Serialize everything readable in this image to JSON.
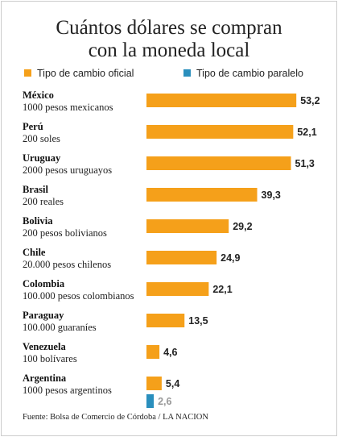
{
  "chart_data": {
    "type": "bar",
    "orientation": "horizontal",
    "title": [
      "Cuántos dólares se compran",
      "con la moneda local"
    ],
    "categories": [
      "México",
      "Perú",
      "Uruguay",
      "Brasil",
      "Bolivia",
      "Chile",
      "Colombia",
      "Paraguay",
      "Venezuela",
      "Argentina"
    ],
    "subtitles": [
      "1000 pesos mexicanos",
      "200 soles",
      "2000 pesos uruguayos",
      "200 reales",
      "200 pesos bolivianos",
      "20.000 pesos chilenos",
      "100.000 pesos colombianos",
      "100.000 guaraníes",
      "100 bolívares",
      "1000 pesos argentinos"
    ],
    "series": [
      {
        "name": "Tipo de cambio oficial",
        "color": "#f5a01a",
        "values": [
          53.2,
          52.1,
          51.3,
          39.3,
          29.2,
          24.9,
          22.1,
          13.5,
          4.6,
          5.4
        ],
        "value_labels": [
          "53,2",
          "52,1",
          "51,3",
          "39,3",
          "29,2",
          "24,9",
          "22,1",
          "13,5",
          "4,6",
          "5,4"
        ]
      },
      {
        "name": "Tipo de cambio paralelo",
        "color": "#2a8fbd",
        "values": [
          null,
          null,
          null,
          null,
          null,
          null,
          null,
          null,
          null,
          2.6
        ],
        "value_labels": [
          null,
          null,
          null,
          null,
          null,
          null,
          null,
          null,
          null,
          "2,6"
        ]
      }
    ],
    "source": "Fuente: Bolsa de Comercio de Córdoba / LA NACION"
  }
}
